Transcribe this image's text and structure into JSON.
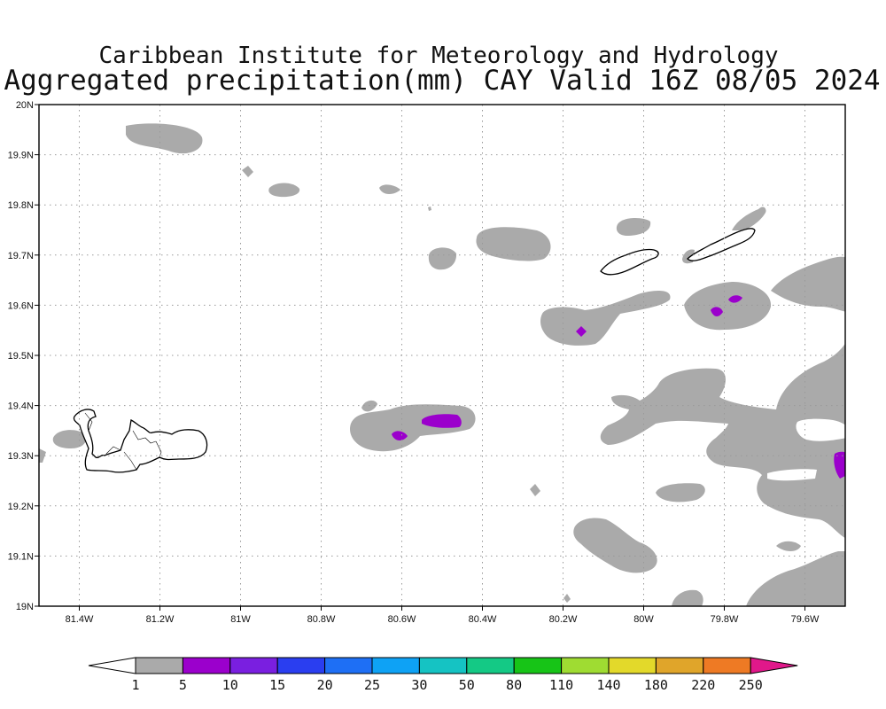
{
  "title_line1": "Caribbean Institute for Meteorology and Hydrology",
  "title_line2": "Aggregated precipitation(mm) CAY Valid 16Z 08/05 2024",
  "map": {
    "lon_range": [
      -81.5,
      -79.5
    ],
    "lat_range": [
      19.0,
      20.0
    ],
    "x_ticks": [
      "81.4W",
      "81.2W",
      "81W",
      "80.8W",
      "80.6W",
      "80.4W",
      "80.2W",
      "80W",
      "79.8W",
      "79.6W"
    ],
    "y_ticks": [
      "19N",
      "19.1N",
      "19.2N",
      "19.3N",
      "19.4N",
      "19.5N",
      "19.6N",
      "19.7N",
      "19.8N",
      "19.9N",
      "20N"
    ],
    "grid": true
  },
  "colorbar": {
    "labels": [
      "1",
      "5",
      "10",
      "15",
      "20",
      "25",
      "30",
      "50",
      "80",
      "110",
      "140",
      "180",
      "220",
      "250"
    ],
    "colors": [
      "#aaaaaa",
      "#9b00cc",
      "#7a1fe0",
      "#2a3ef0",
      "#1e6ff5",
      "#0ea2f5",
      "#15c3c3",
      "#14c985",
      "#17c417",
      "#9fdc32",
      "#e3d92a",
      "#e0a52a",
      "#ee7a24",
      "#f23a3a",
      "#e0188a"
    ],
    "arrow_left_color": "#ffffff"
  },
  "colors": {
    "light_precip": "#aaaaaa",
    "heavy_precip": "#9b00cc",
    "land_outline": "#000000",
    "grid": "#999999"
  }
}
